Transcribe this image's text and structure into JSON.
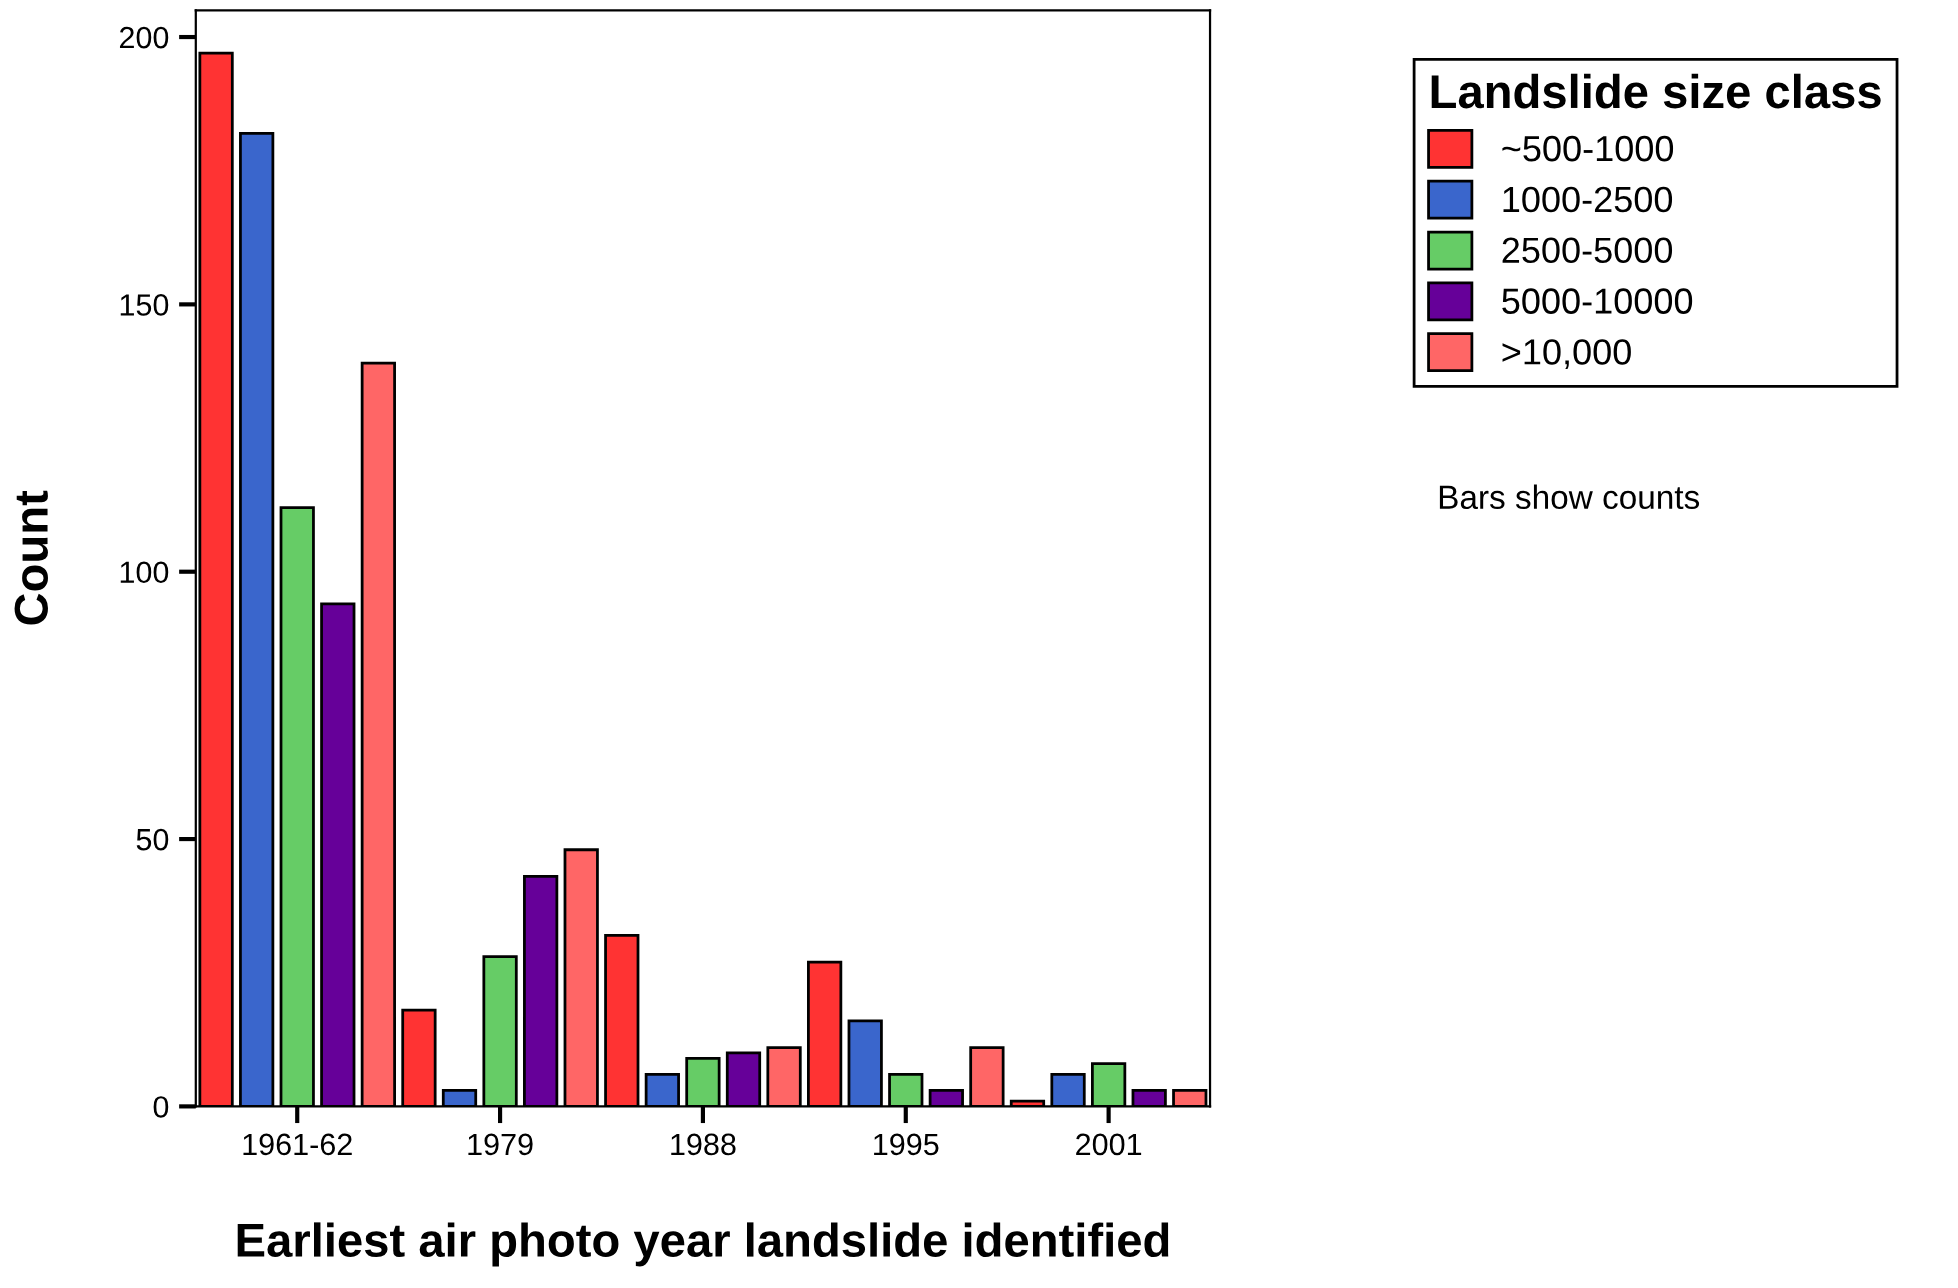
{
  "chart_data": {
    "type": "bar",
    "xlabel": "Earliest air photo year landslide identified",
    "ylabel": "Count",
    "legend_title": "Landslide size class",
    "categories": [
      "1961-62",
      "1979",
      "1988",
      "1995",
      "2001"
    ],
    "series": [
      {
        "name": "~500-1000",
        "color": "#ff3333",
        "values": [
          197,
          18,
          32,
          27,
          1
        ]
      },
      {
        "name": "1000-2500",
        "color": "#3a66cc",
        "values": [
          182,
          3,
          6,
          16,
          6
        ]
      },
      {
        "name": "2500-5000",
        "color": "#66cc66",
        "values": [
          112,
          28,
          9,
          6,
          8
        ]
      },
      {
        "name": "5000-10000",
        "color": "#660099",
        "values": [
          94,
          43,
          10,
          3,
          3
        ]
      },
      {
        "name": ">10,000",
        "color": "#ff6666",
        "values": [
          139,
          48,
          11,
          11,
          3
        ]
      }
    ],
    "ylim": [
      0,
      205
    ],
    "yticks": [
      0,
      50,
      100,
      150,
      200
    ],
    "grid": false,
    "legend": "top right",
    "annotations": [
      "Bars show counts"
    ]
  }
}
